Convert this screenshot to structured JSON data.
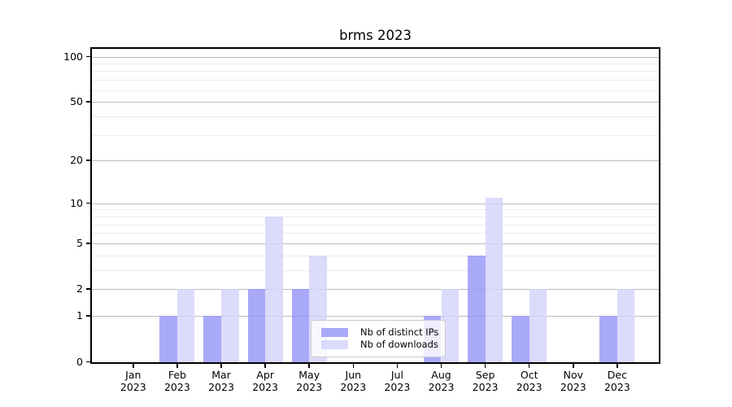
{
  "chart_data": {
    "type": "bar",
    "title": "brms 2023",
    "categories": [
      {
        "month": "Jan",
        "year": "2023"
      },
      {
        "month": "Feb",
        "year": "2023"
      },
      {
        "month": "Mar",
        "year": "2023"
      },
      {
        "month": "Apr",
        "year": "2023"
      },
      {
        "month": "May",
        "year": "2023"
      },
      {
        "month": "Jun",
        "year": "2023"
      },
      {
        "month": "Jul",
        "year": "2023"
      },
      {
        "month": "Aug",
        "year": "2023"
      },
      {
        "month": "Sep",
        "year": "2023"
      },
      {
        "month": "Oct",
        "year": "2023"
      },
      {
        "month": "Nov",
        "year": "2023"
      },
      {
        "month": "Dec",
        "year": "2023"
      }
    ],
    "series": [
      {
        "name": "Nb of distinct IPs",
        "color": "rgba(148,148,249,0.8)",
        "values": [
          0,
          1,
          1,
          2,
          2,
          0,
          0,
          1,
          4,
          1,
          0,
          1
        ]
      },
      {
        "name": "Nb of downloads",
        "color": "rgba(210,210,250,0.8)",
        "values": [
          0,
          2,
          2,
          8,
          4,
          0,
          0,
          2,
          11,
          2,
          0,
          2
        ]
      }
    ],
    "y_axis": {
      "scale": "log1p",
      "major_ticks": [
        100,
        50,
        20,
        10,
        5,
        2,
        1,
        0
      ],
      "minor_ticks": [
        3,
        4,
        6,
        7,
        8,
        9,
        30,
        40,
        60,
        70,
        80,
        90
      ],
      "range": [
        0,
        115
      ]
    },
    "grid": {
      "visible": true,
      "major_color": "#bdbdbd",
      "minor_color": "#ebebeb"
    },
    "legend": {
      "position": "lower center"
    }
  }
}
